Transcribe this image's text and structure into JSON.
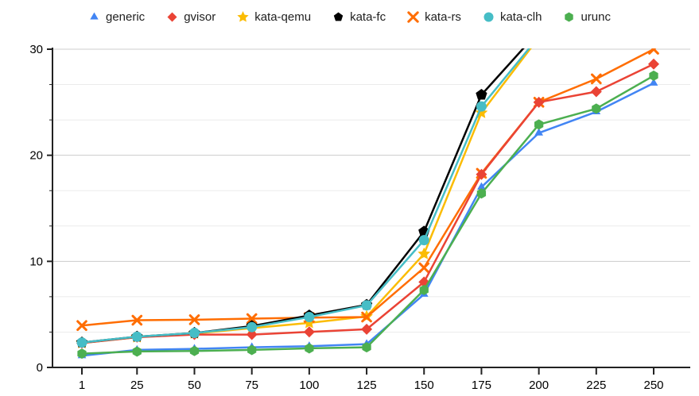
{
  "chart_data": {
    "type": "line",
    "title": "",
    "xlabel": "",
    "ylabel": "",
    "legend_position": "top",
    "grid": "on",
    "x": [
      1,
      25,
      50,
      75,
      100,
      125,
      150,
      175,
      200,
      225,
      250
    ],
    "x_tick_labels": [
      "1",
      "25",
      "50",
      "75",
      "100",
      "125",
      "150",
      "175",
      "200",
      "225",
      "250"
    ],
    "y_ticks": [
      0,
      10,
      20,
      30
    ],
    "y_tick_labels": [
      "0",
      "10",
      "20",
      "30"
    ],
    "y_minor_gridlines": [
      3.333,
      6.667,
      13.333,
      16.667,
      23.333,
      26.667
    ],
    "ylim": [
      0,
      30
    ],
    "xlim": [
      1,
      250
    ],
    "clip_to_ylim": true,
    "series": [
      {
        "name": "generic",
        "color": "#4285F4",
        "marker": "triangle",
        "values": [
          1.1,
          1.65,
          1.75,
          1.9,
          2.0,
          2.2,
          6.9,
          17.0,
          22.1,
          24.1,
          26.8
        ]
      },
      {
        "name": "gvisor",
        "color": "#EA4335",
        "marker": "diamond",
        "values": [
          2.3,
          2.85,
          3.1,
          3.1,
          3.35,
          3.6,
          8.05,
          18.2,
          25.0,
          26.0,
          28.6
        ]
      },
      {
        "name": "kata-qemu",
        "color": "#FBBC04",
        "marker": "star",
        "values": [
          2.3,
          2.85,
          3.2,
          3.7,
          4.2,
          4.8,
          10.7,
          24.0,
          31.1,
          null,
          null
        ]
      },
      {
        "name": "kata-fc",
        "color": "#000000",
        "marker": "pentagon",
        "values": [
          2.35,
          2.9,
          3.25,
          3.9,
          4.9,
          5.9,
          12.8,
          25.7,
          31.7,
          null,
          null
        ]
      },
      {
        "name": "kata-rs",
        "color": "#FF6D01",
        "marker": "x",
        "values": [
          3.95,
          4.45,
          4.5,
          4.6,
          4.7,
          4.75,
          9.4,
          18.3,
          25.0,
          27.2,
          30.0
        ]
      },
      {
        "name": "kata-clh",
        "color": "#46BDC6",
        "marker": "circle",
        "values": [
          2.35,
          2.9,
          3.25,
          3.8,
          4.75,
          5.85,
          12.0,
          24.6,
          31.2,
          null,
          null
        ]
      },
      {
        "name": "urunc",
        "color": "#4CAF50",
        "marker": "hexagon",
        "values": [
          1.3,
          1.5,
          1.55,
          1.65,
          1.8,
          1.9,
          7.3,
          16.4,
          22.9,
          24.4,
          27.5
        ]
      }
    ],
    "colors": {
      "axis": "#222222",
      "major_gridline": "#cccccc",
      "minor_gridline": "#ebebeb",
      "tick_label": "#000000",
      "legend_text": "#212121",
      "background": "#ffffff"
    }
  }
}
